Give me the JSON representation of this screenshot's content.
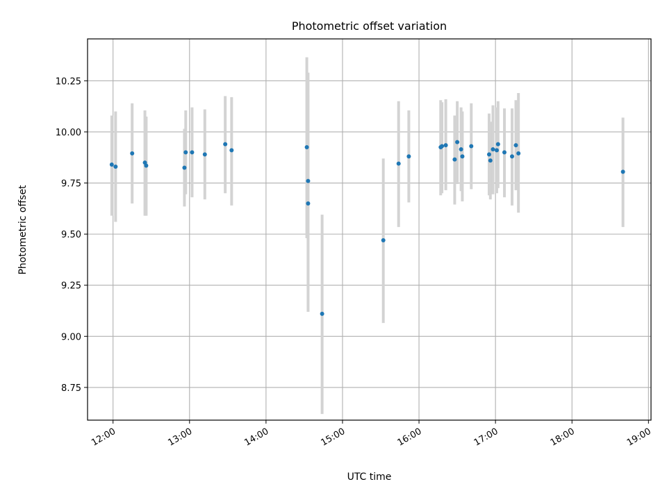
{
  "chart_data": {
    "type": "scatter",
    "title": "Photometric offset variation",
    "xlabel": "UTC time",
    "ylabel": "Photometric offset",
    "xlim": [
      "11:40",
      "19:02"
    ],
    "ylim": [
      8.59,
      10.455
    ],
    "grid": true,
    "x_ticks": [
      "12:00",
      "13:00",
      "14:00",
      "15:00",
      "16:00",
      "17:00",
      "18:00",
      "19:00"
    ],
    "y_ticks": [
      8.75,
      9.0,
      9.25,
      9.5,
      9.75,
      10.0,
      10.25
    ],
    "y_tick_labels": [
      "8.75",
      "9.00",
      "9.25",
      "9.50",
      "9.75",
      "10.00",
      "10.25"
    ],
    "colors": {
      "points": "#1f77b4",
      "error_bars": "#d3d3d3",
      "grid": "#b0b0b0"
    },
    "series": [
      {
        "points": [
          {
            "x": "11:59",
            "y": 9.84,
            "low": 9.59,
            "high": 10.08
          },
          {
            "x": "12:02",
            "y": 9.83,
            "low": 9.56,
            "high": 10.1
          },
          {
            "x": "12:15",
            "y": 9.895,
            "low": 9.65,
            "high": 10.14
          },
          {
            "x": "12:25",
            "y": 9.85,
            "low": 9.59,
            "high": 10.105
          },
          {
            "x": "12:26",
            "y": 9.835,
            "low": 9.59,
            "high": 10.075
          },
          {
            "x": "12:56",
            "y": 9.825,
            "low": 9.635,
            "high": 10.015
          },
          {
            "x": "12:57",
            "y": 9.9,
            "low": 9.695,
            "high": 10.105
          },
          {
            "x": "13:02",
            "y": 9.9,
            "low": 9.68,
            "high": 10.12
          },
          {
            "x": "13:12",
            "y": 9.89,
            "low": 9.67,
            "high": 10.11
          },
          {
            "x": "13:28",
            "y": 9.94,
            "low": 9.7,
            "high": 10.175
          },
          {
            "x": "13:33",
            "y": 9.91,
            "low": 9.64,
            "high": 10.17
          },
          {
            "x": "14:32",
            "y": 9.925,
            "low": 9.48,
            "high": 10.365
          },
          {
            "x": "14:33",
            "y": 9.76,
            "low": 9.23,
            "high": 10.29
          },
          {
            "x": "14:33",
            "y": 9.65,
            "low": 9.12,
            "high": 10.18
          },
          {
            "x": "14:44",
            "y": 9.11,
            "low": 8.62,
            "high": 9.595
          },
          {
            "x": "15:32",
            "y": 9.47,
            "low": 9.065,
            "high": 9.87
          },
          {
            "x": "15:44",
            "y": 9.845,
            "low": 9.535,
            "high": 10.15
          },
          {
            "x": "15:52",
            "y": 9.88,
            "low": 9.655,
            "high": 10.105
          },
          {
            "x": "16:17",
            "y": 9.925,
            "low": 9.69,
            "high": 10.155
          },
          {
            "x": "16:18",
            "y": 9.93,
            "low": 9.7,
            "high": 10.145
          },
          {
            "x": "16:21",
            "y": 9.935,
            "low": 9.715,
            "high": 10.16
          },
          {
            "x": "16:28",
            "y": 9.865,
            "low": 9.645,
            "high": 10.08
          },
          {
            "x": "16:30",
            "y": 9.95,
            "low": 9.745,
            "high": 10.15
          },
          {
            "x": "16:33",
            "y": 9.915,
            "low": 9.71,
            "high": 10.12
          },
          {
            "x": "16:34",
            "y": 9.88,
            "low": 9.66,
            "high": 10.1
          },
          {
            "x": "16:41",
            "y": 9.93,
            "low": 9.72,
            "high": 10.14
          },
          {
            "x": "16:55",
            "y": 9.89,
            "low": 9.69,
            "high": 10.09
          },
          {
            "x": "16:56",
            "y": 9.86,
            "low": 9.67,
            "high": 10.05
          },
          {
            "x": "16:58",
            "y": 9.915,
            "low": 9.695,
            "high": 10.13
          },
          {
            "x": "17:01",
            "y": 9.91,
            "low": 9.7,
            "high": 10.12
          },
          {
            "x": "17:02",
            "y": 9.94,
            "low": 9.725,
            "high": 10.15
          },
          {
            "x": "17:07",
            "y": 9.9,
            "low": 9.68,
            "high": 10.115
          },
          {
            "x": "17:13",
            "y": 9.88,
            "low": 9.64,
            "high": 10.115
          },
          {
            "x": "17:16",
            "y": 9.935,
            "low": 9.715,
            "high": 10.155
          },
          {
            "x": "17:18",
            "y": 9.895,
            "low": 9.605,
            "high": 10.19
          },
          {
            "x": "18:40",
            "y": 9.805,
            "low": 9.535,
            "high": 10.07
          }
        ]
      }
    ]
  }
}
